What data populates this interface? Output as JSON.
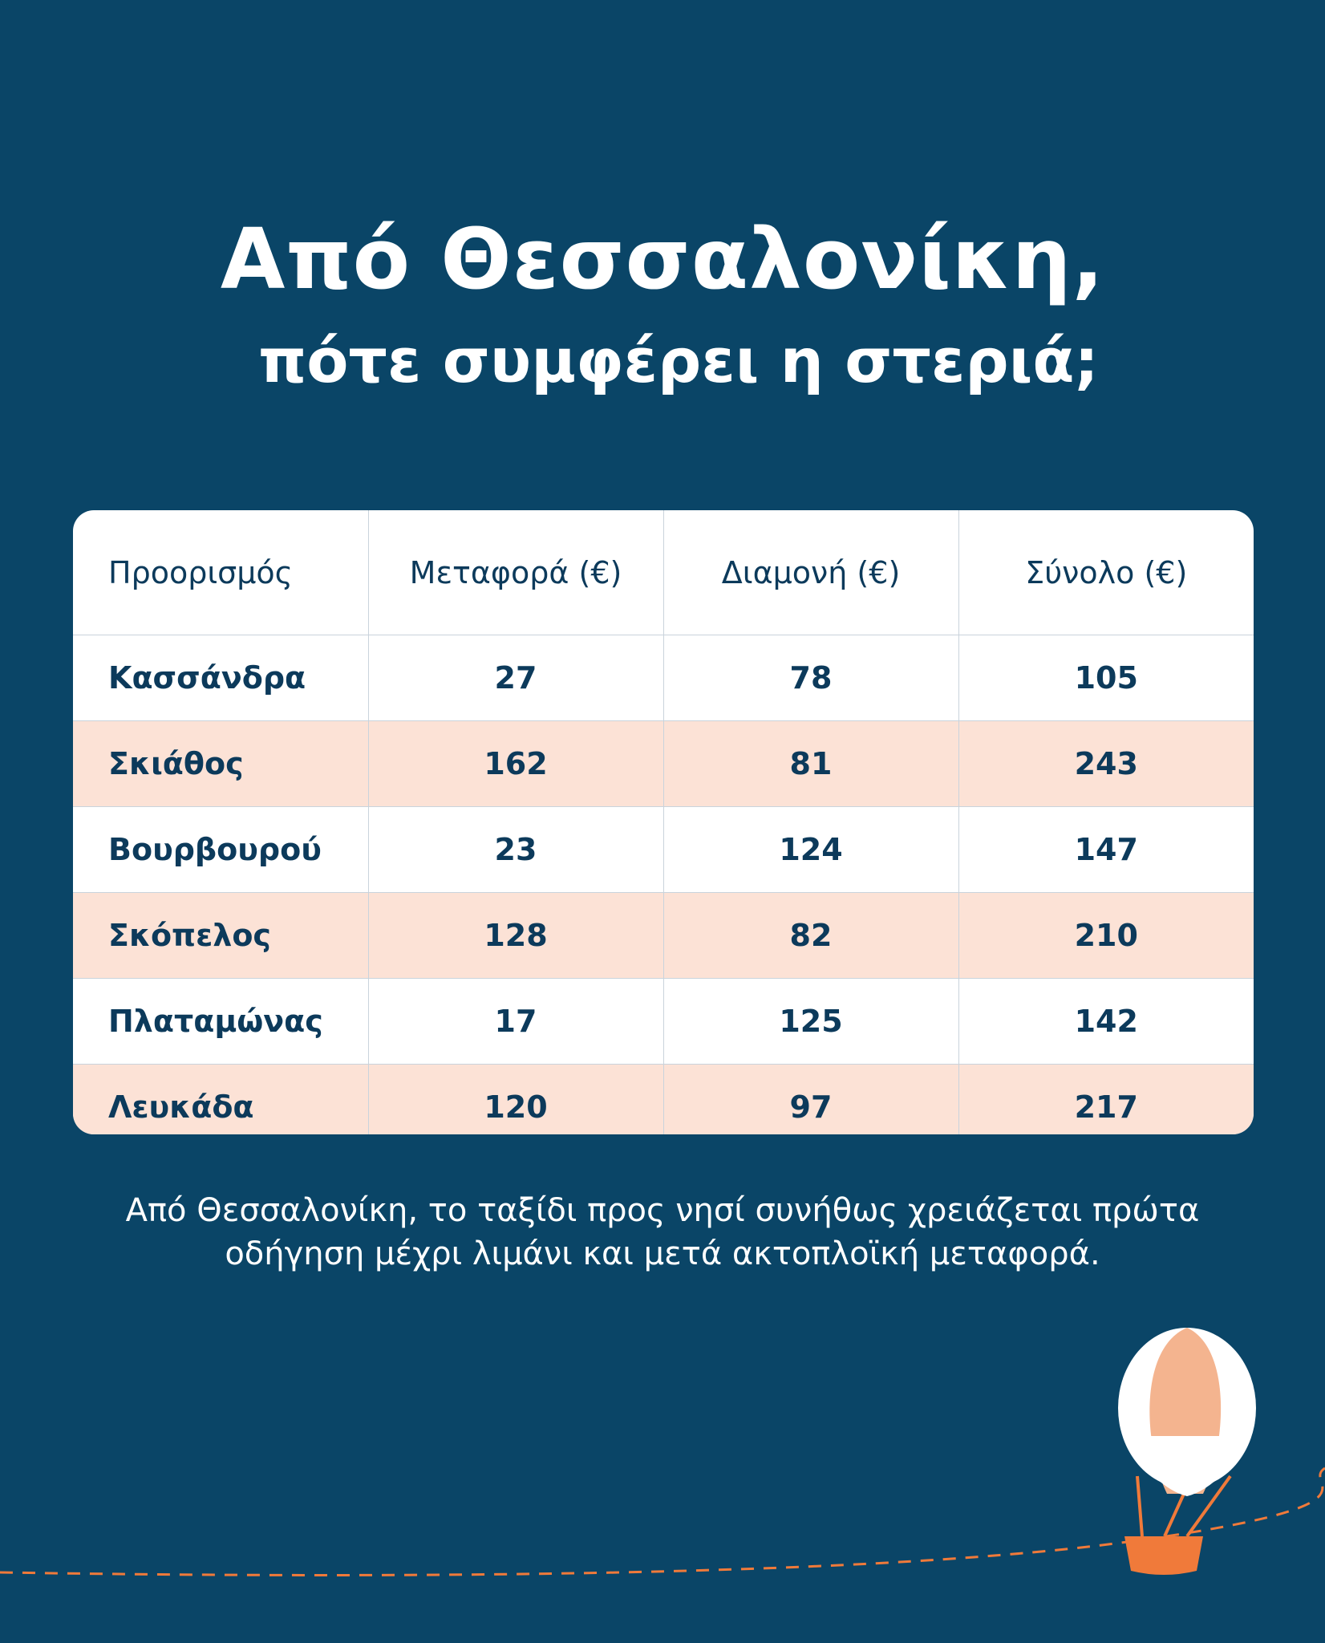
{
  "header": {
    "title": "Από Θεσσαλονίκη,",
    "subtitle": "πότε συμφέρει η στεριά;"
  },
  "table": {
    "columns": [
      "Προορισμός",
      "Μεταφορά (€)",
      "Διαμονή (€)",
      "Σύνολο (€)"
    ],
    "rows": [
      [
        "Κασσάνδρα",
        27,
        78,
        105
      ],
      [
        "Σκιάθος",
        162,
        81,
        243
      ],
      [
        "Βουρβουρού",
        23,
        124,
        147
      ],
      [
        "Σκόπελος",
        128,
        82,
        210
      ],
      [
        "Πλαταμώνας",
        17,
        125,
        142
      ],
      [
        "Λευκάδα",
        120,
        97,
        217
      ]
    ]
  },
  "footnote": [
    "Από Θεσσαλονίκη, το ταξίδι προς νησί συνήθως χρειάζεται πρώτα",
    "οδήγηση μέχρι λιμάνι και μετά ακτοπλοϊκή μεταφορά."
  ]
}
